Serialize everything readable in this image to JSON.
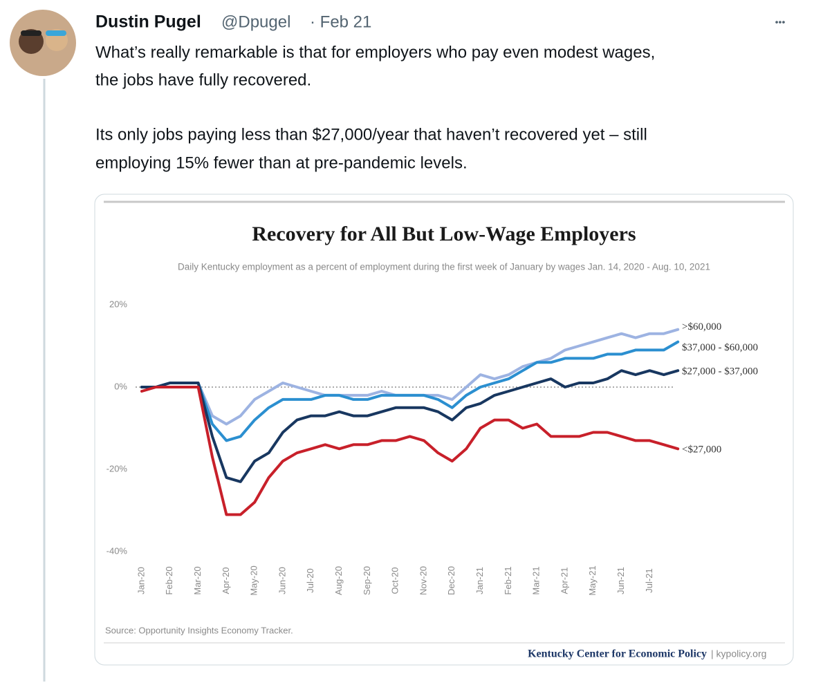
{
  "tweet": {
    "name": "Dustin Pugel",
    "handle": "@Dpugel",
    "date": "· Feb 21",
    "more": "•••",
    "lines": [
      "What’s really remarkable is that for employers who pay even modest wages,",
      "the jobs have fully recovered.",
      "Its only jobs paying less than $27,000/year that haven’t recovered yet – still",
      "employing 15% fewer than at pre-pandemic levels."
    ]
  },
  "chart_data": {
    "type": "line",
    "title": "Recovery for All But Low-Wage Employers",
    "subtitle": "Daily Kentucky employment as a percent of employment during the first week of January by wages Jan. 14, 2020 - Aug. 10, 2021",
    "categories": [
      "Jan-20",
      null,
      "Feb-20",
      null,
      "Mar-20",
      null,
      "Apr-20",
      null,
      "May-20",
      null,
      "Jun-20",
      null,
      "Jul-20",
      null,
      "Aug-20",
      null,
      "Sep-20",
      null,
      "Oct-20",
      null,
      "Nov-20",
      null,
      "Dec-20",
      null,
      "Jan-21",
      null,
      "Feb-21",
      null,
      "Mar-21",
      null,
      "Apr-21",
      null,
      "May-21",
      null,
      "Jun-21",
      null,
      "Jul-21",
      null,
      null
    ],
    "series": [
      {
        "name": ">$60,000",
        "color": "#9db3e2",
        "values": [
          0,
          0,
          1,
          1,
          1,
          -7,
          -9,
          -7,
          -3,
          -1,
          1,
          0,
          -1,
          -2,
          -2,
          -2,
          -2,
          -1,
          -2,
          -2,
          -2,
          -2,
          -3,
          0,
          3,
          2,
          3,
          5,
          6,
          7,
          9,
          10,
          11,
          12,
          13,
          12,
          13,
          13,
          14
        ]
      },
      {
        "name": "$37,000 - $60,000",
        "color": "#2b8fd0",
        "values": [
          0,
          0,
          1,
          1,
          1,
          -9,
          -13,
          -12,
          -8,
          -5,
          -3,
          -3,
          -3,
          -2,
          -2,
          -3,
          -3,
          -2,
          -2,
          -2,
          -2,
          -3,
          -5,
          -2,
          0,
          1,
          2,
          4,
          6,
          6,
          7,
          7,
          7,
          8,
          8,
          9,
          9,
          9,
          11
        ]
      },
      {
        "name": "$27,000 - $37,000",
        "color": "#183760",
        "values": [
          0,
          0,
          1,
          1,
          1,
          -12,
          -22,
          -23,
          -18,
          -16,
          -11,
          -8,
          -7,
          -7,
          -6,
          -7,
          -7,
          -6,
          -5,
          -5,
          -5,
          -6,
          -8,
          -5,
          -4,
          -2,
          -1,
          0,
          1,
          2,
          0,
          1,
          1,
          2,
          4,
          3,
          4,
          3,
          4
        ]
      },
      {
        "name": "<$27,000",
        "color": "#c8202a",
        "values": [
          -1,
          0,
          0,
          0,
          0,
          -17,
          -31,
          -31,
          -28,
          -22,
          -18,
          -16,
          -15,
          -14,
          -15,
          -14,
          -14,
          -13,
          -13,
          -12,
          -13,
          -16,
          -18,
          -15,
          -10,
          -8,
          -8,
          -10,
          -9,
          -12,
          -12,
          -12,
          -11,
          -11,
          -12,
          -13,
          -13,
          -14,
          -15
        ]
      }
    ],
    "ylim": [
      -40,
      20
    ],
    "yticks": [
      {
        "value": 20,
        "label": "20%"
      },
      {
        "value": 0,
        "label": "0%"
      },
      {
        "value": -20,
        "label": "-20%"
      },
      {
        "value": -40,
        "label": "-40%"
      }
    ],
    "source": "Source: Opportunity Insights Economy Tracker.",
    "credit": "Kentucky Center for Economic Policy",
    "credit_site": "| kypolicy.org"
  }
}
